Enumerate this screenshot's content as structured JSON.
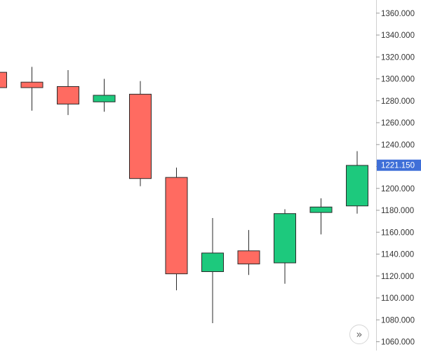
{
  "chart_data": {
    "type": "candlestick",
    "title": "",
    "xlabel": "",
    "ylabel": "",
    "ylim": [
      1052,
      1372
    ],
    "yticks": [
      "1360.000",
      "1340.000",
      "1320.000",
      "1300.000",
      "1280.000",
      "1260.000",
      "1240.000",
      "1220.000",
      "1200.000",
      "1180.000",
      "1160.000",
      "1140.000",
      "1120.000",
      "1100.000",
      "1080.000",
      "1060.000"
    ],
    "ytick_values": [
      1360,
      1340,
      1320,
      1300,
      1280,
      1260,
      1240,
      1220,
      1200,
      1180,
      1160,
      1140,
      1120,
      1100,
      1080,
      1060
    ],
    "grid": false,
    "up_color": "#1dc97d",
    "down_color": "#ff6b61",
    "candles": [
      {
        "open": 1306,
        "high": 1306,
        "low": 1292,
        "close": 1292
      },
      {
        "open": 1297,
        "high": 1311,
        "low": 1271,
        "close": 1292
      },
      {
        "open": 1293,
        "high": 1308,
        "low": 1267,
        "close": 1277
      },
      {
        "open": 1279,
        "high": 1300,
        "low": 1270,
        "close": 1285
      },
      {
        "open": 1286,
        "high": 1298,
        "low": 1202,
        "close": 1209
      },
      {
        "open": 1210,
        "high": 1219,
        "low": 1107,
        "close": 1122
      },
      {
        "open": 1124,
        "high": 1173,
        "low": 1077,
        "close": 1141
      },
      {
        "open": 1143,
        "high": 1162,
        "low": 1121,
        "close": 1131
      },
      {
        "open": 1132,
        "high": 1181,
        "low": 1113,
        "close": 1177
      },
      {
        "open": 1178,
        "high": 1191,
        "low": 1158,
        "close": 1183
      },
      {
        "open": 1184,
        "high": 1234,
        "low": 1177,
        "close": 1221
      }
    ],
    "last_price": {
      "value": 1221.15,
      "label": "1221.150",
      "color": "#3f6fd8"
    }
  },
  "ui": {
    "scroll_button_icon": "double-chevron-right-icon",
    "scroll_button_glyph": "»"
  }
}
